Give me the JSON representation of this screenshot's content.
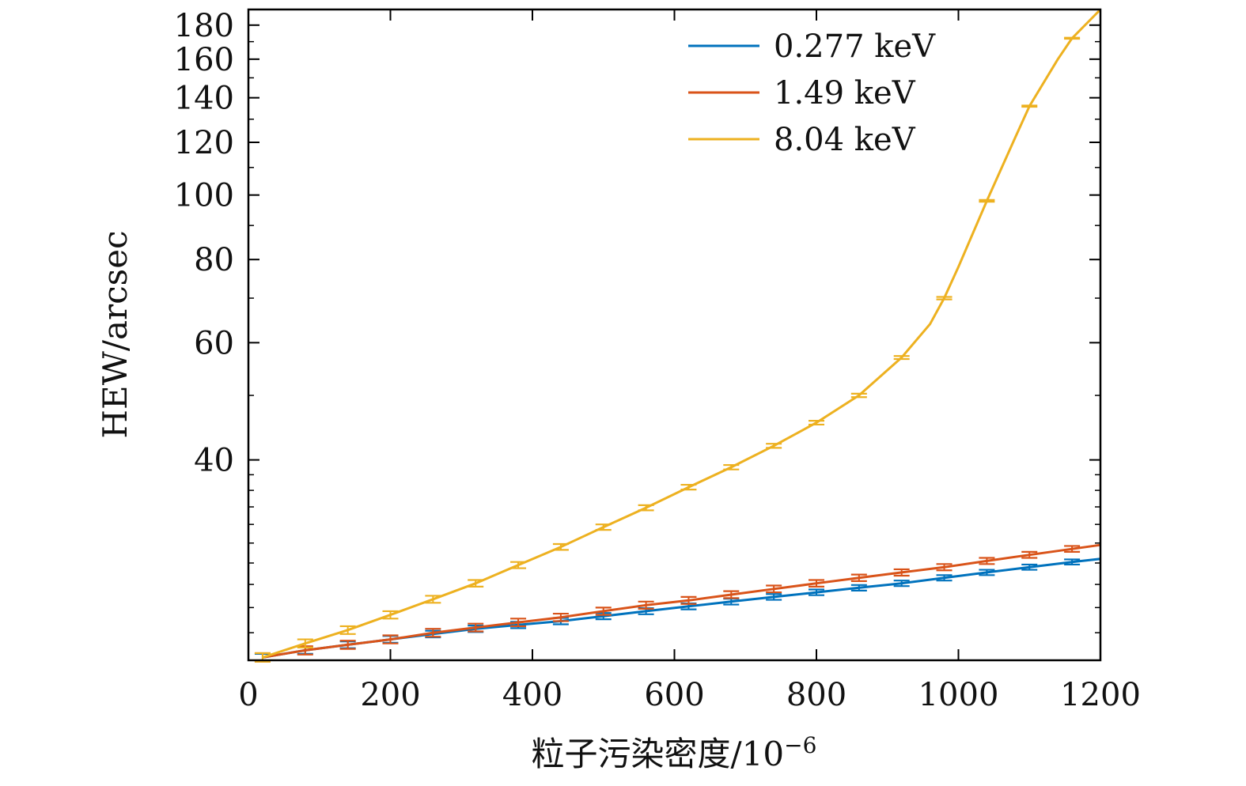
{
  "chart_data": {
    "type": "line",
    "xlabel": "粒子污染密度/10",
    "xlabel_sup": "−6",
    "ylabel": "HEW/arcsec",
    "xlim": [
      0,
      1200
    ],
    "ylim": [
      20,
      190
    ],
    "yscale": "log",
    "grid": false,
    "legend_position": "top-right",
    "xticks": [
      0,
      200,
      400,
      600,
      800,
      1000,
      1200
    ],
    "yticks": [
      40,
      60,
      80,
      100,
      120,
      140,
      160,
      180
    ],
    "series": [
      {
        "name": "0.277 keV",
        "color": "#0072BD",
        "x": [
          20,
          80,
          140,
          200,
          260,
          320,
          380,
          440,
          500,
          560,
          620,
          680,
          740,
          800,
          860,
          920,
          980,
          1040,
          1100,
          1160,
          1200
        ],
        "y": [
          20.2,
          20.7,
          21.1,
          21.5,
          21.9,
          22.3,
          22.6,
          22.9,
          23.3,
          23.7,
          24.1,
          24.5,
          24.9,
          25.3,
          25.7,
          26.1,
          26.6,
          27.1,
          27.6,
          28.1,
          28.4
        ],
        "err_x": [
          20,
          80,
          140,
          200,
          260,
          320,
          380,
          440,
          500,
          560,
          620,
          680,
          740,
          800,
          860,
          920,
          980,
          1040,
          1100,
          1160
        ],
        "err_y": [
          20.2,
          20.7,
          21.1,
          21.5,
          21.9,
          22.3,
          22.6,
          22.9,
          23.3,
          23.7,
          24.1,
          24.5,
          24.9,
          25.3,
          25.7,
          26.1,
          26.6,
          27.1,
          27.6,
          28.1
        ],
        "err": 0.25
      },
      {
        "name": "1.49 keV",
        "color": "#D95319",
        "x": [
          20,
          80,
          140,
          200,
          260,
          320,
          380,
          440,
          500,
          560,
          620,
          680,
          740,
          800,
          860,
          920,
          980,
          1040,
          1100,
          1160,
          1200
        ],
        "y": [
          20.2,
          20.7,
          21.1,
          21.5,
          22.0,
          22.4,
          22.8,
          23.2,
          23.7,
          24.2,
          24.6,
          25.1,
          25.6,
          26.1,
          26.6,
          27.1,
          27.6,
          28.2,
          28.8,
          29.4,
          29.8
        ],
        "err_x": [
          20,
          80,
          140,
          200,
          260,
          320,
          380,
          440,
          500,
          560,
          620,
          680,
          740,
          800,
          860,
          920,
          980,
          1040,
          1100,
          1160
        ],
        "err_y": [
          20.2,
          20.7,
          21.1,
          21.5,
          22.0,
          22.4,
          22.8,
          23.2,
          23.7,
          24.2,
          24.6,
          25.1,
          25.6,
          26.1,
          26.6,
          27.1,
          27.6,
          28.2,
          28.8,
          29.4
        ],
        "err": 0.3
      },
      {
        "name": "8.04 keV",
        "color": "#EDB120",
        "x": [
          20,
          80,
          140,
          200,
          260,
          320,
          380,
          440,
          500,
          560,
          620,
          680,
          740,
          800,
          860,
          920,
          960,
          980,
          1000,
          1040,
          1080,
          1100,
          1140,
          1160,
          1200
        ],
        "y": [
          20.2,
          21.2,
          22.2,
          23.4,
          24.7,
          26.1,
          27.8,
          29.6,
          31.7,
          33.9,
          36.4,
          39.0,
          42.0,
          45.5,
          50.0,
          57.0,
          64.0,
          70.0,
          78.0,
          98.0,
          122.0,
          136.0,
          160.0,
          172.0,
          190.0
        ],
        "err_x": [
          20,
          80,
          140,
          200,
          260,
          320,
          380,
          440,
          500,
          560,
          620,
          680,
          740,
          800,
          860,
          920,
          980,
          1040,
          1100,
          1160
        ],
        "err_y": [
          20.2,
          21.2,
          22.2,
          23.4,
          24.7,
          26.1,
          27.8,
          29.6,
          31.7,
          33.9,
          36.4,
          39.0,
          42.0,
          45.5,
          50.0,
          57.0,
          70.0,
          98.0,
          136.0,
          172.0
        ],
        "err": 0.3
      }
    ]
  }
}
